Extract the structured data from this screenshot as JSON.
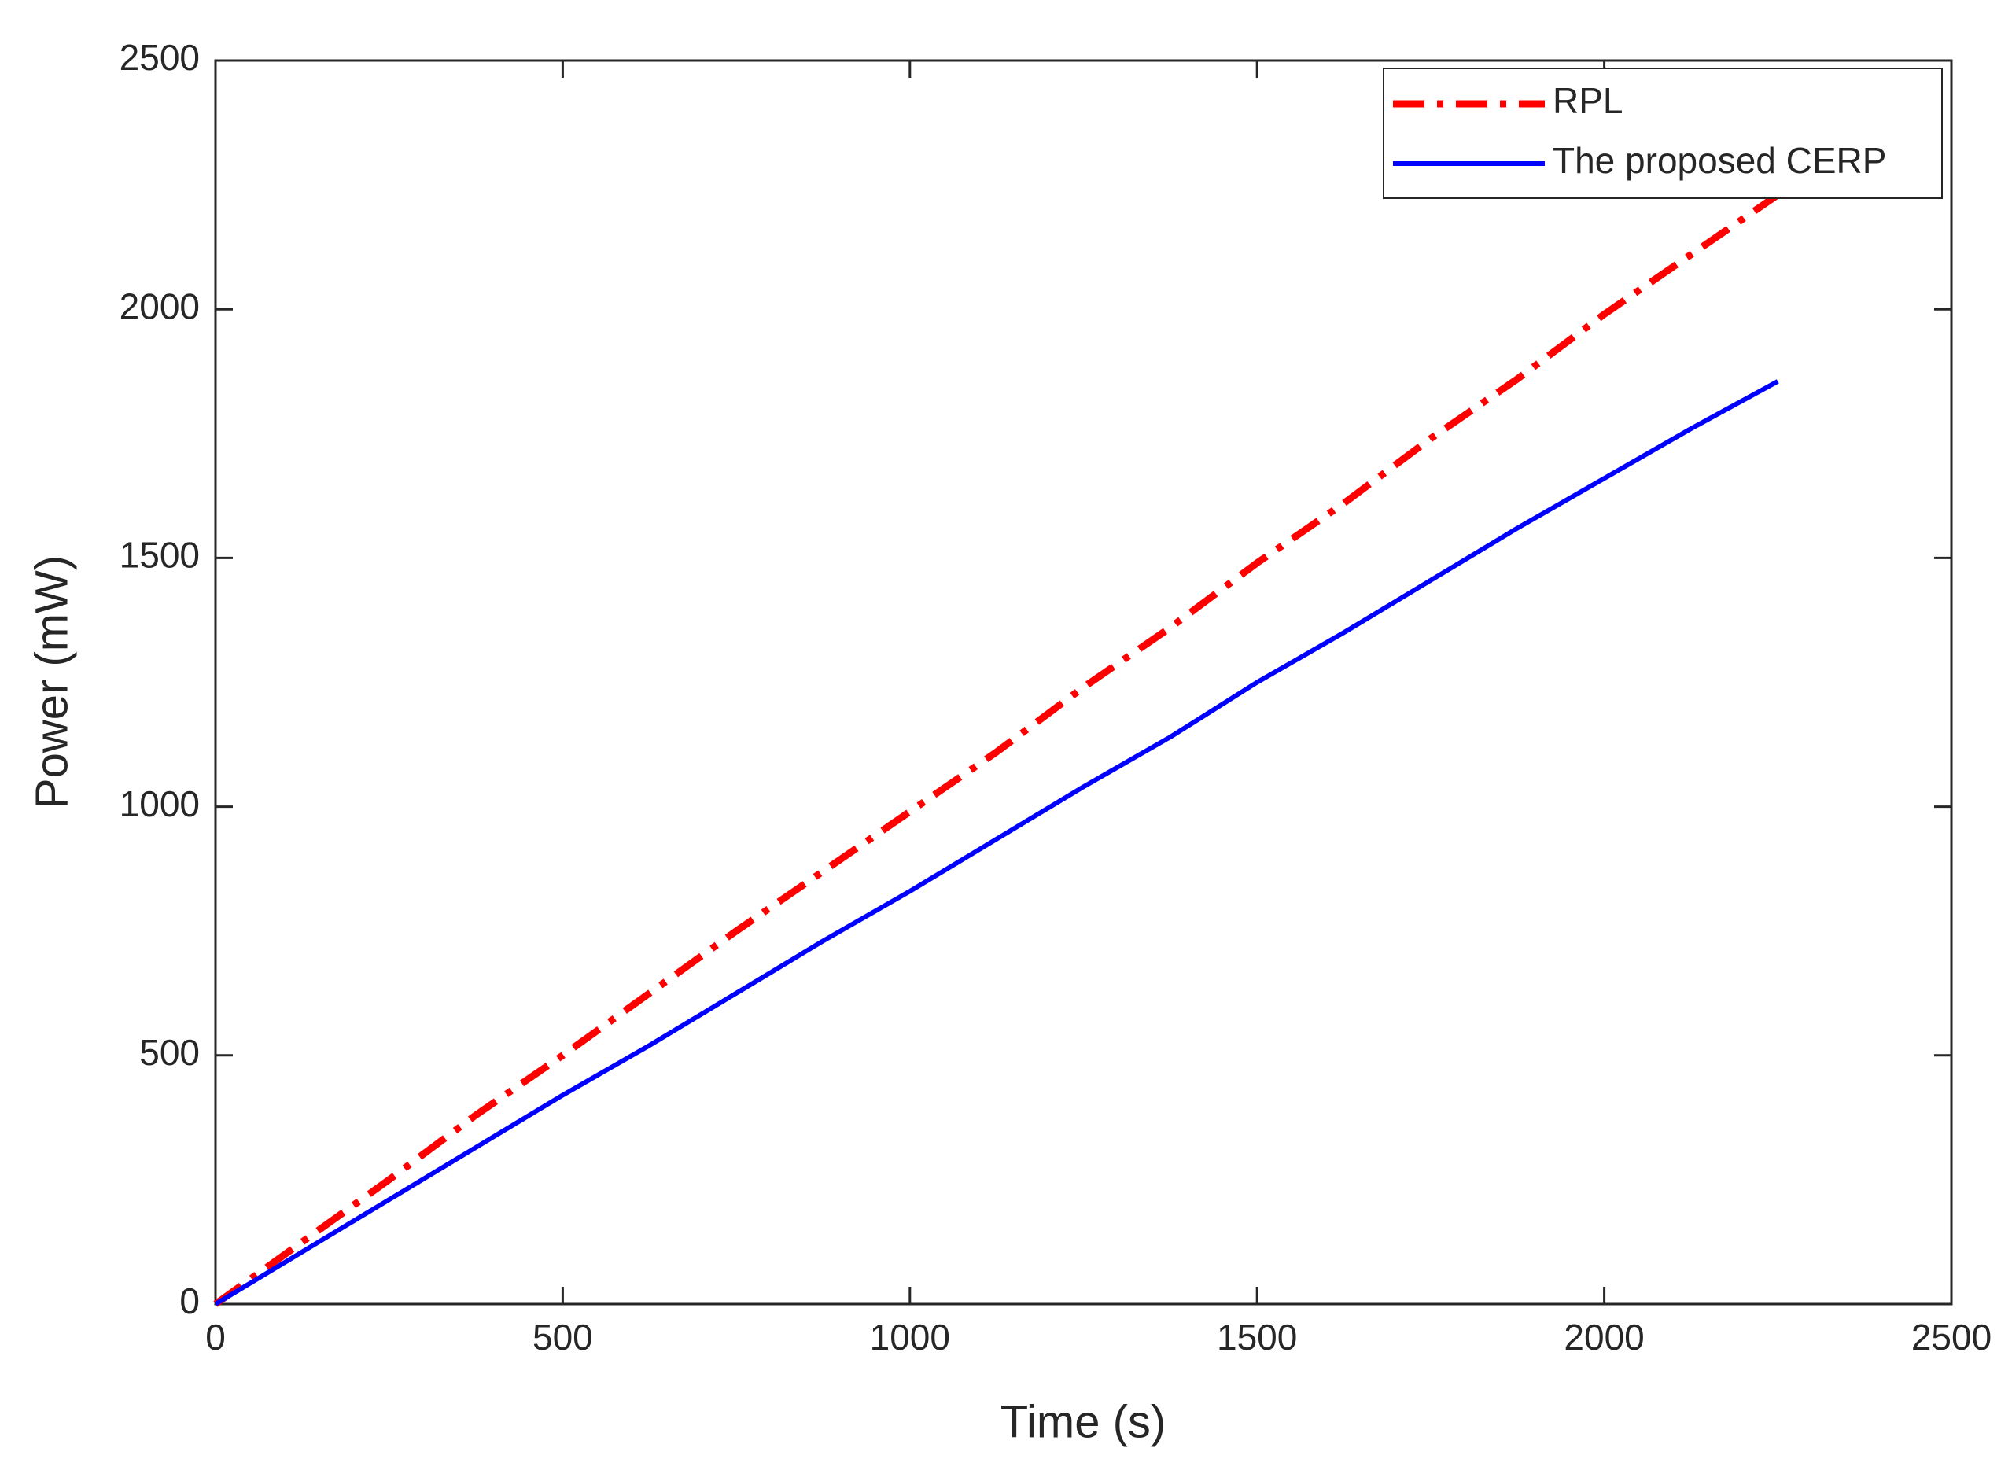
{
  "chart_data": {
    "type": "line",
    "x_label": "Time (s)",
    "y_label": "Power (mW)",
    "x": [
      0,
      125,
      250,
      375,
      500,
      625,
      750,
      875,
      1000,
      1125,
      1250,
      1375,
      1500,
      1625,
      1750,
      1875,
      2000,
      2125,
      2250
    ],
    "series": [
      {
        "name": "RPL",
        "color": "#ff0000",
        "dash": "dashdot",
        "values": [
          0,
          125,
          250,
          380,
          500,
          625,
          750,
          870,
          990,
          1110,
          1240,
          1360,
          1490,
          1610,
          1740,
          1860,
          1990,
          2110,
          2230
        ]
      },
      {
        "name": "The proposed CERP",
        "color": "#0000ff",
        "dash": "solid",
        "values": [
          0,
          105,
          210,
          315,
          420,
          520,
          625,
          730,
          830,
          935,
          1040,
          1140,
          1250,
          1350,
          1455,
          1560,
          1660,
          1760,
          1855
        ]
      }
    ],
    "xlim": [
      0,
      2500
    ],
    "ylim": [
      0,
      2500
    ],
    "xticks": [
      0,
      500,
      1000,
      1500,
      2000,
      2500
    ],
    "yticks": [
      0,
      500,
      1000,
      1500,
      2000,
      2500
    ],
    "grid": false,
    "legend": "northeast"
  }
}
